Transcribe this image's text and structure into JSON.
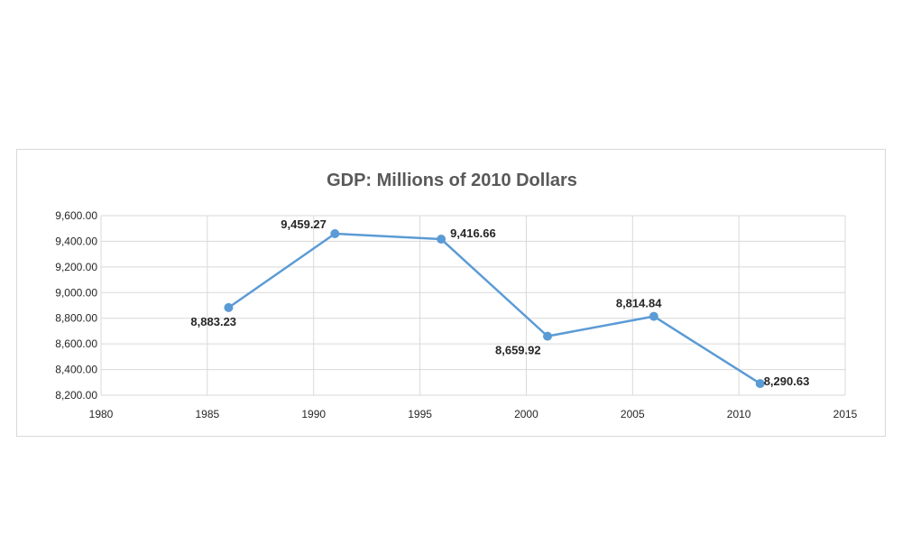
{
  "chart_data": {
    "type": "scatter",
    "title": "GDP: Millions of 2010 Dollars",
    "xlabel": "",
    "ylabel": "",
    "xlim": [
      1980,
      2015
    ],
    "ylim": [
      8200,
      9600
    ],
    "x_ticks": [
      "1980",
      "1985",
      "1990",
      "1995",
      "2000",
      "2005",
      "2010",
      "2015"
    ],
    "y_ticks": [
      "9,600.00",
      "9,400.00",
      "9,200.00",
      "9,000.00",
      "8,800.00",
      "8,600.00",
      "8,400.00",
      "8,200.00"
    ],
    "grid": true,
    "legend": "none",
    "series_color": "#5b9bd5",
    "series": [
      {
        "x": [
          1986,
          1991,
          1996,
          2001,
          2006,
          2011
        ],
        "y": [
          8883.23,
          9459.27,
          9416.66,
          8659.92,
          8814.84,
          8290.63
        ],
        "labels": [
          "8,883.23",
          "9,459.27",
          "9,416.66",
          "8,659.92",
          "8,814.84",
          "8,290.63"
        ]
      }
    ]
  }
}
